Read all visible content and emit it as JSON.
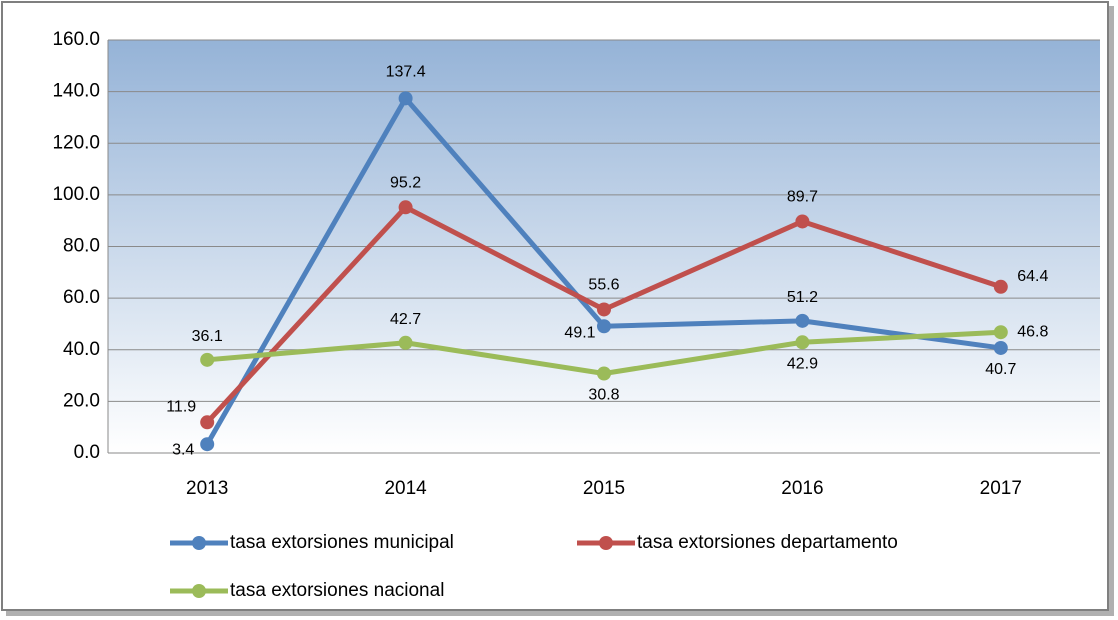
{
  "chart_data": {
    "type": "line",
    "categories": [
      "2013",
      "2014",
      "2015",
      "2016",
      "2017"
    ],
    "series": [
      {
        "name": "tasa extorsiones municipal",
        "color": "#4f81bd",
        "values": [
          3.4,
          137.4,
          49.1,
          51.2,
          40.7
        ]
      },
      {
        "name": "tasa extorsiones departamento",
        "color": "#c0504d",
        "values": [
          11.9,
          95.2,
          55.6,
          89.7,
          64.4
        ]
      },
      {
        "name": "tasa extorsiones nacional",
        "color": "#9bbb59",
        "values": [
          36.1,
          42.7,
          30.8,
          42.9,
          46.8
        ]
      }
    ],
    "ylim": [
      0,
      160
    ],
    "yticks": [
      {
        "value": 0,
        "label": "0.0"
      },
      {
        "value": 20,
        "label": "20.0"
      },
      {
        "value": 40,
        "label": "40.0"
      },
      {
        "value": 60,
        "label": "60.0"
      },
      {
        "value": 80,
        "label": "80.0"
      },
      {
        "value": 100,
        "label": "100.0"
      },
      {
        "value": 120,
        "label": "120.0"
      },
      {
        "value": 140,
        "label": "140.0"
      },
      {
        "value": 160,
        "label": "160.0"
      }
    ],
    "grid": true,
    "legend": "bottom"
  }
}
